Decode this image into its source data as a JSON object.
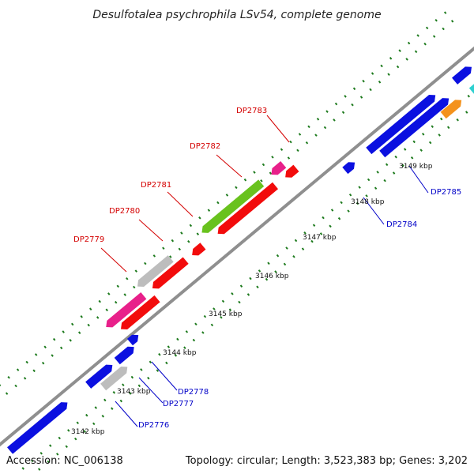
{
  "title": "Desulfotalea psychrophila LSv54, complete genome",
  "footer": {
    "accession": "Accession: NC_006138",
    "summary": "Topology: circular; Length: 3,523,383 bp; Genes: 3,202"
  },
  "scale_labels": [
    "3142 kbp",
    "3143 kbp",
    "3144 kbp",
    "3145 kbp",
    "3146 kbp",
    "3147 kbp",
    "3148 kbp",
    "3149 kbp"
  ],
  "gene_labels_reverse": [
    "DP2779",
    "DP2780",
    "DP2781",
    "DP2782",
    "DP2783"
  ],
  "gene_labels_forward": [
    "DP2776",
    "DP2777",
    "DP2778",
    "DP2784",
    "DP2785"
  ],
  "colors": {
    "forward": "#0b10e0",
    "reverse_red": "#f20c0c",
    "pink": "#e8208a",
    "green": "#69c21e",
    "grey": "#bdbdbd",
    "orange": "#f4921c",
    "cyan": "#2dd0d0",
    "backbone": "#8f8f8f",
    "tick": "#1d7a1d",
    "label_red": "#d40000",
    "label_blue": "#0000c8"
  }
}
